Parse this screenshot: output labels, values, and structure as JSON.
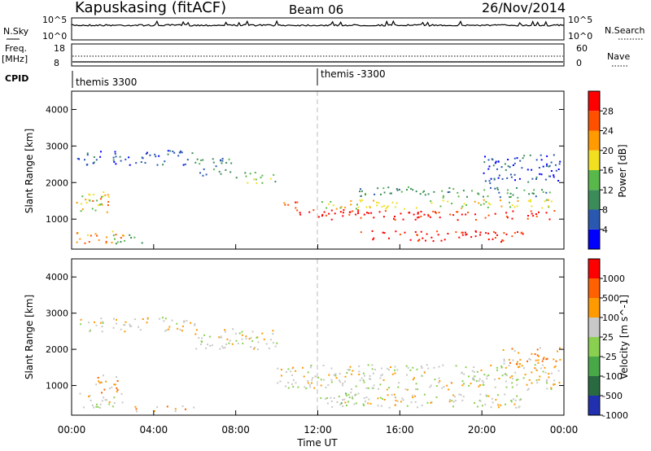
{
  "header": {
    "station": "Kapuskasing (fitACF)",
    "beam": "Beam 06",
    "date": "26/Nov/2014"
  },
  "noise_panel": {
    "left_label": "N.Sky",
    "right_label": "N.Search",
    "left_ticks": [
      "10^5",
      "10^0"
    ],
    "right_ticks": [
      "10^5",
      "10^0"
    ]
  },
  "freq_panel": {
    "left_label_line1": "Freq.",
    "left_label_line2": "[MHz]",
    "right_label": "Nave",
    "left_ticks": [
      "18",
      "8"
    ],
    "right_ticks": [
      "60",
      "0"
    ]
  },
  "cpid_panel": {
    "label": "CPID",
    "segments": [
      {
        "label": "themis 3300",
        "start_hour": 0
      },
      {
        "label": "themis -3300",
        "start_hour": 12
      }
    ]
  },
  "time_axis": {
    "label": "Time UT",
    "ticks": [
      "00:00",
      "04:00",
      "08:00",
      "12:00",
      "16:00",
      "20:00",
      "00:00"
    ]
  },
  "chart_data": [
    {
      "type": "heatmap",
      "title": "",
      "xlabel": "",
      "ylabel": "Slant Range [km]",
      "xlim": [
        0,
        24
      ],
      "ylim": [
        180,
        4500
      ],
      "yticks": [
        1000,
        2000,
        3000,
        4000
      ],
      "colorbar": {
        "label": "Power [dB]",
        "ticks": [
          "4",
          "8",
          "12",
          "16",
          "20",
          "24",
          "28"
        ],
        "colors": [
          "#0000ff",
          "#2a57b0",
          "#3c8c5a",
          "#58b84a",
          "#f0e020",
          "#ff9a00",
          "#ff5000",
          "#ff0000"
        ]
      },
      "scatter_bands": [
        {
          "x": [
            0.2,
            2.5
          ],
          "range": [
            350,
            700
          ],
          "level": 5
        },
        {
          "x": [
            0.2,
            2.0
          ],
          "range": [
            1200,
            1700
          ],
          "level": 4
        },
        {
          "x": [
            1.0,
            1.8
          ],
          "range": [
            1400,
            1800
          ],
          "level": 5
        },
        {
          "x": [
            0.2,
            1.5
          ],
          "range": [
            2500,
            2900
          ],
          "level": 1
        },
        {
          "x": [
            1.8,
            3.5
          ],
          "range": [
            350,
            600
          ],
          "level": 3
        },
        {
          "x": [
            2.0,
            6.0
          ],
          "range": [
            2500,
            2900
          ],
          "level": 1
        },
        {
          "x": [
            6.0,
            8.0
          ],
          "range": [
            2200,
            2700
          ],
          "level": 2
        },
        {
          "x": [
            8.0,
            10.0
          ],
          "range": [
            2000,
            2300
          ],
          "level": 3
        },
        {
          "x": [
            10.3,
            11.0
          ],
          "range": [
            1200,
            1600
          ],
          "level": 6
        },
        {
          "x": [
            11.0,
            14.0
          ],
          "range": [
            1100,
            1300
          ],
          "level": 7
        },
        {
          "x": [
            12.0,
            23.5
          ],
          "range": [
            1000,
            1250
          ],
          "level": 7
        },
        {
          "x": [
            12.0,
            23.5
          ],
          "range": [
            1300,
            1550
          ],
          "level": 4
        },
        {
          "x": [
            14.0,
            22.0
          ],
          "range": [
            400,
            700
          ],
          "level": 7
        },
        {
          "x": [
            14.0,
            23.5
          ],
          "range": [
            1600,
            1900
          ],
          "level": 2
        },
        {
          "x": [
            20.0,
            23.8
          ],
          "range": [
            2000,
            2800
          ],
          "level": 1
        }
      ]
    },
    {
      "type": "heatmap",
      "title": "",
      "xlabel": "Time UT",
      "ylabel": "Slant Range [km]",
      "xlim": [
        0,
        24
      ],
      "ylim": [
        180,
        4500
      ],
      "yticks": [
        1000,
        2000,
        3000,
        4000
      ],
      "colorbar": {
        "label": "Velocity [m s^-1]",
        "ticks": [
          "1000",
          "500",
          "100",
          "25",
          "-25",
          "-100",
          "-500",
          "-1000"
        ],
        "colors": [
          "#2030b0",
          "#2a6a40",
          "#48a848",
          "#8ad050",
          "#c8c8c8",
          "#ff9a00",
          "#ff6000",
          "#ff0000"
        ]
      },
      "scatter_bands": [
        {
          "x": [
            0.2,
            2.5
          ],
          "range": [
            400,
            800
          ],
          "level": 4
        },
        {
          "x": [
            1.0,
            2.5
          ],
          "range": [
            800,
            1300
          ],
          "level": 5
        },
        {
          "x": [
            0.2,
            1.5
          ],
          "range": [
            2500,
            2900
          ],
          "level": 4
        },
        {
          "x": [
            2.0,
            6.0
          ],
          "range": [
            2500,
            2900
          ],
          "level": 4
        },
        {
          "x": [
            6.0,
            10.0
          ],
          "range": [
            2000,
            2600
          ],
          "level": 4
        },
        {
          "x": [
            3.0,
            6.0
          ],
          "range": [
            300,
            450
          ],
          "level": 5
        },
        {
          "x": [
            10.0,
            23.8
          ],
          "range": [
            900,
            1600
          ],
          "level": 4
        },
        {
          "x": [
            12.0,
            22.0
          ],
          "range": [
            400,
            800
          ],
          "level": 4
        },
        {
          "x": [
            12.5,
            14.0
          ],
          "range": [
            500,
            900
          ],
          "level": 3
        },
        {
          "x": [
            21.0,
            23.8
          ],
          "range": [
            1500,
            2100
          ],
          "level": 5
        }
      ]
    }
  ]
}
